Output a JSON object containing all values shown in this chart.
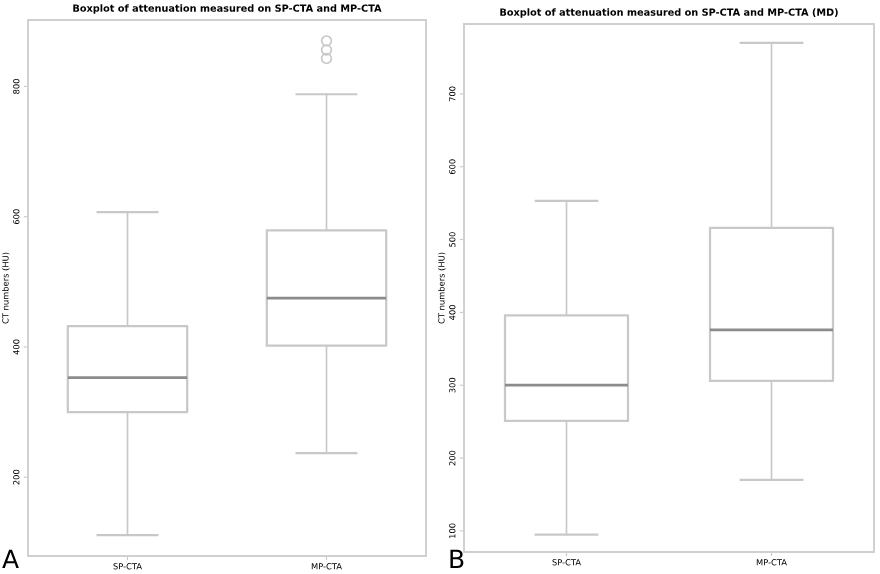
{
  "chart_data": [
    {
      "type": "box",
      "title": "Boxplot of attenuation measured on SP-CTA and MP-CTA",
      "ylabel": "CT numbers (HU)",
      "categories": [
        "SP-CTA",
        "MP-CTA"
      ],
      "boxes": [
        {
          "low": 111,
          "q1": 300,
          "median": 353,
          "q3": 432,
          "high": 607
        },
        {
          "low": 237,
          "q1": 402,
          "median": 475,
          "q3": 579,
          "high": 788,
          "outliers": [
            843,
            856,
            870
          ]
        }
      ],
      "ylim": [
        79,
        902
      ],
      "yticks": [
        200,
        400,
        600,
        800
      ],
      "grid": false,
      "annotations": [
        "A"
      ]
    },
    {
      "type": "box",
      "title": "Boxplot of attenuation measured on SP-CTA and MP-CTA (MD)",
      "ylabel": "CT numbers (HU)",
      "categories": [
        "SP-CTA",
        "MP-CTA"
      ],
      "boxes": [
        {
          "low": 95,
          "q1": 251,
          "median": 300,
          "q3": 396,
          "high": 553
        },
        {
          "low": 170,
          "q1": 306,
          "median": 376,
          "q3": 516,
          "high": 770
        }
      ],
      "ylim": [
        71,
        796
      ],
      "yticks": [
        100,
        200,
        300,
        400,
        500,
        600,
        700
      ],
      "grid": false,
      "annotations": [
        "B"
      ]
    }
  ]
}
